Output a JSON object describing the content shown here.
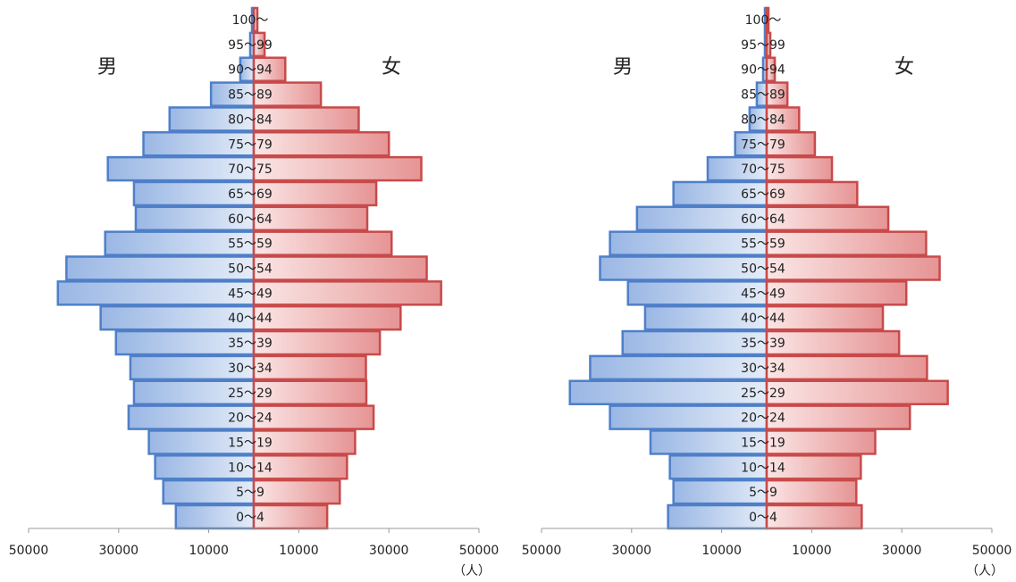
{
  "chart_data": [
    {
      "type": "pyramid",
      "categories": [
        "100～",
        "95～99",
        "90～94",
        "85～89",
        "80～84",
        "75～79",
        "70～75",
        "65～69",
        "60～64",
        "55～59",
        "50～54",
        "45～49",
        "40～44",
        "35～39",
        "30～34",
        "25～29",
        "20～24",
        "15～19",
        "10～14",
        "5～9",
        "0～4"
      ],
      "series": [
        {
          "name": "男",
          "side": "left",
          "color": "#4f7fc8",
          "values": [
            400,
            800,
            3000,
            9500,
            18700,
            24500,
            32400,
            26600,
            26200,
            33000,
            41600,
            43500,
            34000,
            30600,
            27400,
            26600,
            27800,
            23300,
            21900,
            20100,
            17300
          ]
        },
        {
          "name": "女",
          "side": "right",
          "color": "#c84a4a",
          "values": [
            800,
            2400,
            7000,
            14900,
            23300,
            30000,
            37200,
            27200,
            25200,
            30600,
            38400,
            41600,
            32600,
            28000,
            24900,
            25000,
            26600,
            22500,
            20700,
            19100,
            16300
          ]
        }
      ],
      "xlim": [
        -50000,
        50000
      ],
      "xticks": [
        {
          "value": -50000,
          "label": "50000"
        },
        {
          "value": -30000,
          "label": "30000"
        },
        {
          "value": -10000,
          "label": "10000"
        },
        10000,
        30000,
        50000
      ],
      "x_unit": "（人）"
    },
    {
      "type": "pyramid",
      "categories": [
        "100～",
        "95～99",
        "90～94",
        "85～89",
        "80～84",
        "75～79",
        "70～75",
        "65～69",
        "60～64",
        "55～59",
        "50～54",
        "45～49",
        "40～44",
        "35～39",
        "30～34",
        "25～29",
        "20～24",
        "15～19",
        "10～14",
        "5～9",
        "0～4"
      ],
      "series": [
        {
          "name": "男",
          "side": "left",
          "color": "#4f7fc8",
          "values": [
            400,
            400,
            800,
            2200,
            3800,
            7000,
            13100,
            20700,
            28800,
            34800,
            37000,
            30800,
            27000,
            32000,
            39200,
            43700,
            34800,
            25800,
            21500,
            20700,
            21900
          ]
        },
        {
          "name": "女",
          "side": "right",
          "color": "#c84a4a",
          "values": [
            400,
            800,
            1800,
            4600,
            7200,
            10700,
            14500,
            20100,
            27000,
            35400,
            38400,
            31000,
            25800,
            29400,
            35600,
            40200,
            31800,
            24100,
            20900,
            19900,
            21100
          ]
        }
      ],
      "xlim": [
        -50000,
        50000
      ],
      "xticks": [
        {
          "value": -50000,
          "label": "50000"
        },
        {
          "value": -30000,
          "label": "30000"
        },
        {
          "value": -10000,
          "label": "10000"
        },
        10000,
        30000,
        50000
      ],
      "x_unit": "（人）"
    }
  ]
}
